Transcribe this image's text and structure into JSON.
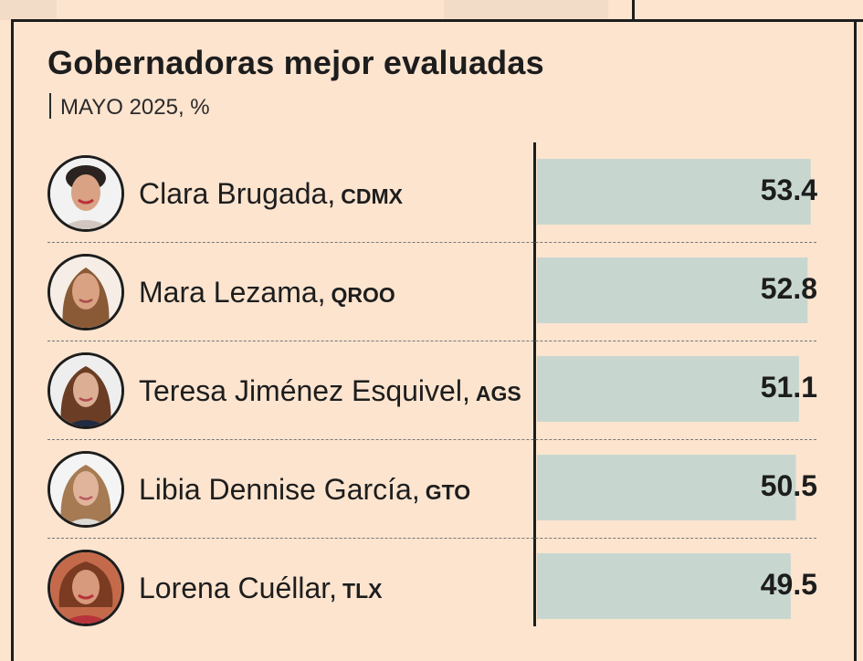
{
  "title": "Gobernadoras mejor evaluadas",
  "subtitle": "MAYO  2025, %",
  "colors": {
    "background": "#fce4cf",
    "bar": "#c7d7cf",
    "text": "#1d1d1d"
  },
  "chart_data": {
    "type": "bar",
    "orientation": "horizontal",
    "title": "Gobernadoras mejor evaluadas",
    "subtitle": "MAYO  2025, %",
    "categories": [
      "Clara Brugada, CDMX",
      "Mara Lezama, QROO",
      "Teresa Jiménez Esquivel, AGS",
      "Libia Dennise García, GTO",
      "Lorena Cuéllar, TLX"
    ],
    "values": [
      53.4,
      52.8,
      51.1,
      50.5,
      49.5
    ],
    "value_labels": [
      "53.4",
      "52.8",
      "51.1",
      "50.5",
      "49.5"
    ],
    "xlim": [
      0,
      62
    ],
    "grid": false,
    "legend": "none"
  },
  "rows": [
    {
      "name": "Clara Brugada,",
      "state": "CDMX",
      "value": "53.4"
    },
    {
      "name": "Mara Lezama,",
      "state": "QROO",
      "value": "52.8"
    },
    {
      "name": "Teresa Jiménez Esquivel,",
      "state": "AGS",
      "value": "51.1"
    },
    {
      "name": "Libia Dennise García,",
      "state": "GTO",
      "value": "50.5"
    },
    {
      "name": "Lorena Cuéllar,",
      "state": "TLX",
      "value": "49.5"
    }
  ]
}
